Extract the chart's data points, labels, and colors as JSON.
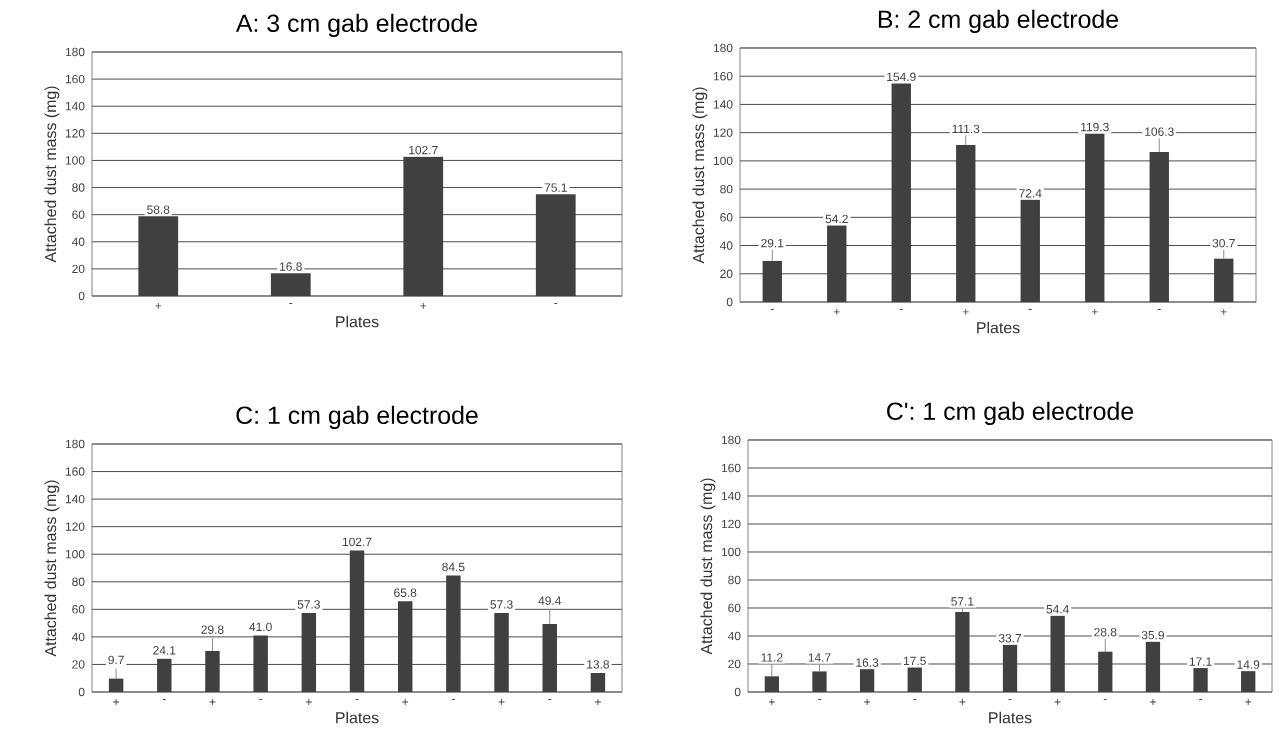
{
  "chart_data": [
    {
      "type": "bar",
      "title": "A: 3 cm gab electrode",
      "xlabel": "Plates",
      "ylabel": "Attached dust mass (mg)",
      "categories": [
        "+",
        "-",
        "+",
        "-"
      ],
      "values": [
        58.8,
        16.8,
        102.7,
        75.1
      ],
      "color": "#404040",
      "ylim": [
        0,
        180
      ],
      "yticks": [
        0,
        20,
        40,
        60,
        80,
        100,
        120,
        140,
        160,
        180
      ],
      "grid": "y",
      "data_labels": true
    },
    {
      "type": "bar",
      "title": "B: 2 cm gab electrode",
      "xlabel": "Plates",
      "ylabel": "Attached dust mass (mg)",
      "categories": [
        "-",
        "+",
        "-",
        "+",
        "-",
        "+",
        "-",
        "+"
      ],
      "values": [
        29.1,
        54.2,
        154.9,
        111.3,
        72.4,
        119.3,
        106.3,
        30.7
      ],
      "errors": [
        [
          29.1,
          37
        ],
        null,
        null,
        [
          111.3,
          118
        ],
        null,
        null,
        [
          106.3,
          116
        ],
        [
          30.7,
          37
        ]
      ],
      "color": "#404040",
      "ylim": [
        0,
        180
      ],
      "yticks": [
        0,
        20,
        40,
        60,
        80,
        100,
        120,
        140,
        160,
        180
      ],
      "grid": "y",
      "data_labels": true
    },
    {
      "type": "bar",
      "title": "C: 1 cm gab electrode",
      "xlabel": "Plates",
      "ylabel": "Attached dust mass (mg)",
      "categories": [
        "+",
        "-",
        "+",
        "-",
        "+",
        "-",
        "+",
        "-",
        "+",
        "-",
        "+"
      ],
      "values": [
        9.7,
        24.1,
        29.8,
        41.0,
        57.3,
        102.7,
        65.8,
        84.5,
        57.3,
        49.4,
        13.8
      ],
      "value_labels": [
        "9.7",
        "24.1",
        "29.8",
        "41.0",
        "57.3",
        "102.7",
        "65.8",
        "84.5",
        "57.3",
        "49.4",
        "13.8"
      ],
      "errors": [
        [
          9.7,
          17
        ],
        null,
        [
          29.8,
          39
        ],
        null,
        null,
        null,
        null,
        null,
        null,
        [
          49.4,
          60
        ],
        null
      ],
      "color": "#404040",
      "ylim": [
        0,
        180
      ],
      "yticks": [
        0,
        20,
        40,
        60,
        80,
        100,
        120,
        140,
        160,
        180
      ],
      "grid": "y"
    },
    {
      "type": "bar",
      "title": "C': 1 cm gab electrode",
      "xlabel": "Plates",
      "ylabel": "Attached dust mass (mg)",
      "categories": [
        "+",
        "-",
        "+",
        "-",
        "+",
        "-",
        "+",
        "-",
        "+",
        "-",
        "+"
      ],
      "values": [
        11.2,
        14.7,
        16.3,
        17.5,
        57.1,
        33.7,
        54.4,
        28.8,
        35.9,
        17.1,
        14.9
      ],
      "errors": [
        [
          11.2,
          20
        ],
        [
          14.7,
          20
        ],
        null,
        null,
        [
          57.1,
          60
        ],
        null,
        null,
        [
          28.8,
          38
        ],
        null,
        null,
        null
      ],
      "color": "#404040",
      "ylim": [
        0,
        180
      ],
      "yticks": [
        0,
        20,
        40,
        60,
        80,
        100,
        120,
        140,
        160,
        180
      ],
      "grid": "y",
      "data_labels": true
    }
  ]
}
